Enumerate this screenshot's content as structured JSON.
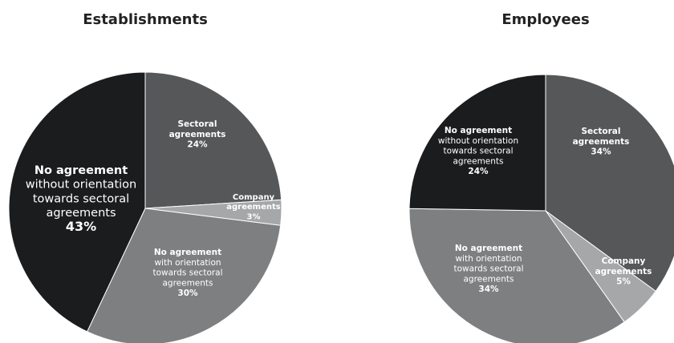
{
  "chart_data": [
    {
      "type": "pie",
      "title": "Establishments",
      "slices": [
        {
          "lines": [
            "Sectoral",
            "agreements"
          ],
          "value_label": "24%",
          "value": 24,
          "color": "#555759"
        },
        {
          "lines": [
            "Company",
            "agreements"
          ],
          "value_label": "3%",
          "value": 3,
          "color": "#a5a7a9"
        },
        {
          "lines": [
            "No agreement",
            "with orientation",
            "towards sectoral",
            "agreements"
          ],
          "value_label": "30%",
          "value": 30,
          "color": "#7d7f81"
        },
        {
          "lines": [
            "No agreement",
            "without orientation",
            "towards sectoral",
            "agreements"
          ],
          "value_label": "43%",
          "value": 43,
          "color": "#1a1c1e"
        }
      ]
    },
    {
      "type": "pie",
      "title": "Employees",
      "slices": [
        {
          "lines": [
            "Sectoral",
            "agreements"
          ],
          "value_label": "34%",
          "value": 34,
          "color": "#555759"
        },
        {
          "lines": [
            "Company",
            "agreements"
          ],
          "value_label": "5%",
          "value": 5,
          "color": "#a5a7a9"
        },
        {
          "lines": [
            "No agreement",
            "with orientation",
            "towards sectoral",
            "agreements"
          ],
          "value_label": "34%",
          "value": 34,
          "color": "#7d7f81"
        },
        {
          "lines": [
            "No agreement",
            "without orientation",
            "towards sectoral",
            "agreements"
          ],
          "value_label": "24%",
          "value": 24,
          "color": "#1a1c1e"
        }
      ]
    }
  ]
}
